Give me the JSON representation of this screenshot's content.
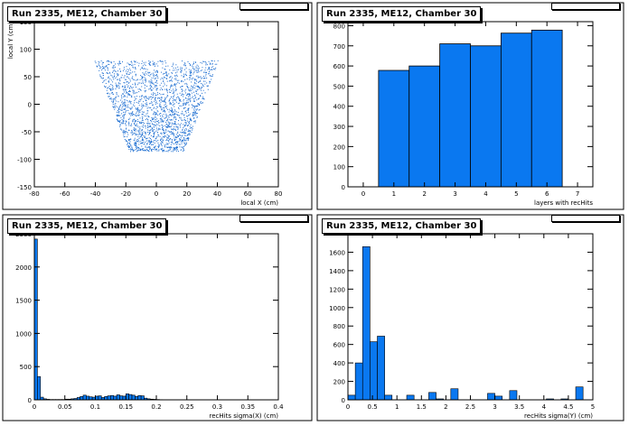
{
  "chart_data": [
    {
      "type": "scatter",
      "title": "Run 2335, ME12, Chamber 30",
      "xlabel": "local X (cm)",
      "ylabel": "local Y (cm)",
      "xlim": [
        -80,
        80
      ],
      "ylim": [
        -150,
        150
      ],
      "xticks": [
        -80,
        -60,
        -40,
        -20,
        0,
        20,
        40,
        60,
        80
      ],
      "yticks": [
        -150,
        -100,
        -50,
        0,
        50,
        100,
        150
      ],
      "point_color": "#1f6fd1",
      "region": {
        "y_top": 80,
        "y_bottom": -85,
        "x_half_width_top": 41,
        "x_half_width_bottom": 18,
        "approx_points": 2200
      }
    },
    {
      "type": "bar",
      "title": "Run 2335, ME12, Chamber 30",
      "xlabel": "layers with recHits",
      "ylabel": "",
      "xlim": [
        -0.5,
        7.5
      ],
      "ylim": [
        0,
        820
      ],
      "xticks": [
        0,
        1,
        2,
        3,
        4,
        5,
        6,
        7
      ],
      "yticks": [
        0,
        100,
        200,
        300,
        400,
        500,
        600,
        700,
        800
      ],
      "categories": [
        1,
        2,
        3,
        4,
        5,
        6
      ],
      "values": [
        578,
        600,
        710,
        700,
        763,
        778
      ],
      "bin_width": 1,
      "fill_color": "#0a78f0"
    },
    {
      "type": "bar",
      "title": "Run 2335, ME12, Chamber 30",
      "xlabel": "recHits sigma(X) (cm)",
      "ylabel": "",
      "xlim": [
        0,
        0.4
      ],
      "ylim": [
        0,
        2500
      ],
      "xticks": [
        0,
        0.05,
        0.1,
        0.15,
        0.2,
        0.25,
        0.3,
        0.35,
        0.4
      ],
      "yticks": [
        0,
        500,
        1000,
        1500,
        2000,
        2500
      ],
      "bin_width": 0.005,
      "x": [
        0.0025,
        0.0075,
        0.0125,
        0.0175,
        0.0225,
        0.0275,
        0.0325,
        0.0375,
        0.0425,
        0.0475,
        0.0525,
        0.0575,
        0.0625,
        0.0675,
        0.0725,
        0.0775,
        0.0825,
        0.0875,
        0.0925,
        0.0975,
        0.1025,
        0.1075,
        0.1125,
        0.1175,
        0.1225,
        0.1275,
        0.1325,
        0.1375,
        0.1425,
        0.1475,
        0.1525,
        0.1575,
        0.1625,
        0.1675,
        0.1725,
        0.1775,
        0.1825,
        0.1875,
        0.1925,
        0.1975,
        0.2025,
        0.2075
      ],
      "values": [
        2420,
        350,
        40,
        15,
        8,
        5,
        5,
        5,
        5,
        5,
        10,
        10,
        15,
        20,
        35,
        50,
        70,
        55,
        45,
        40,
        55,
        60,
        35,
        50,
        60,
        65,
        55,
        75,
        60,
        55,
        90,
        80,
        70,
        50,
        65,
        60,
        25,
        15,
        10,
        8,
        5,
        3
      ],
      "fill_color": "#0a78f0"
    },
    {
      "type": "bar",
      "title": "Run 2335, ME12, Chamber 30",
      "xlabel": "recHits sigma(Y) (cm)",
      "ylabel": "",
      "xlim": [
        0,
        5
      ],
      "ylim": [
        0,
        1800
      ],
      "xticks": [
        0,
        0.5,
        1,
        1.5,
        2,
        2.5,
        3,
        3.5,
        4,
        4.5,
        5
      ],
      "yticks": [
        0,
        200,
        400,
        600,
        800,
        1000,
        1200,
        1400,
        1600
      ],
      "bin_width": 0.15,
      "x": [
        0.075,
        0.225,
        0.375,
        0.525,
        0.675,
        0.825,
        0.975,
        1.125,
        1.275,
        1.425,
        1.575,
        1.725,
        1.875,
        2.025,
        2.175,
        2.325,
        2.475,
        2.625,
        2.775,
        2.925,
        3.075,
        3.225,
        3.375,
        3.525,
        3.675,
        3.825,
        3.975,
        4.125,
        4.275,
        4.425,
        4.575,
        4.725,
        4.875
      ],
      "values": [
        50,
        400,
        1660,
        630,
        690,
        50,
        0,
        0,
        50,
        0,
        0,
        80,
        10,
        0,
        120,
        0,
        0,
        0,
        0,
        70,
        40,
        0,
        100,
        0,
        0,
        0,
        0,
        10,
        0,
        10,
        0,
        140,
        0
      ],
      "fill_color": "#0a78f0"
    }
  ]
}
